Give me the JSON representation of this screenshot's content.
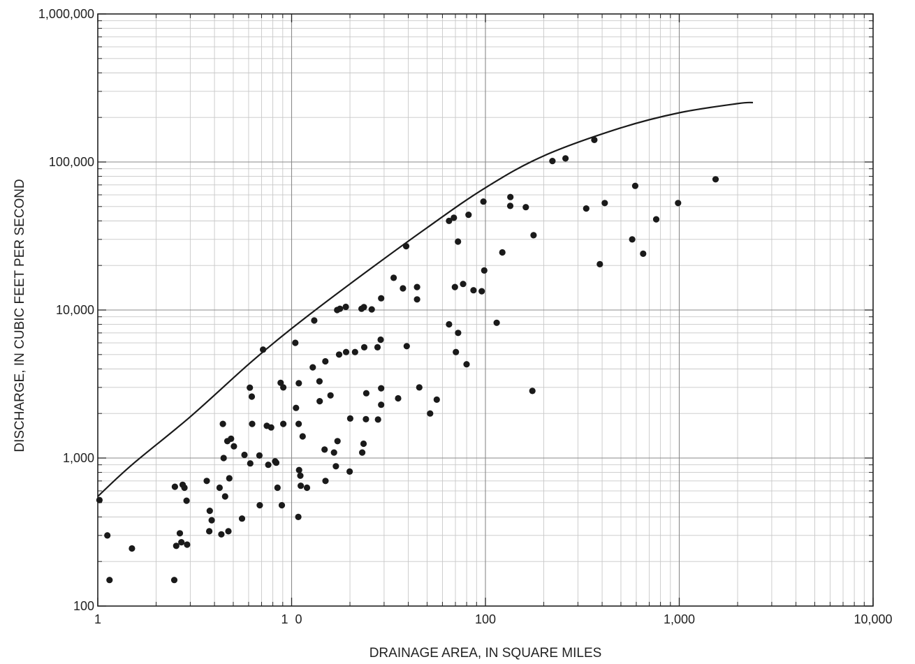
{
  "chart_data": {
    "type": "scatter",
    "x_scale": "log",
    "y_scale": "log",
    "xlim": [
      10,
      100000
    ],
    "ylim": [
      100,
      1000000
    ],
    "xlabel": "DRAINAGE AREA, IN SQUARE MILES",
    "ylabel": "DISCHARGE, IN CUBIC FEET PER SECOND",
    "grid": true,
    "x_ticks": [
      {
        "value": 10,
        "label": "1"
      },
      {
        "value": 100,
        "label": "1  0"
      },
      {
        "value": 1000,
        "label": "100"
      },
      {
        "value": 10000,
        "label": "1,000"
      },
      {
        "value": 100000,
        "label": "10,000"
      }
    ],
    "y_ticks": [
      {
        "value": 100,
        "label": "100"
      },
      {
        "value": 1000,
        "label": "1,000"
      },
      {
        "value": 10000,
        "label": "10,000"
      },
      {
        "value": 100000,
        "label": "100,000"
      },
      {
        "value": 1000000,
        "label": "1,000,000"
      }
    ],
    "curve": {
      "x": [
        10,
        15,
        30,
        60,
        100,
        200,
        500,
        1000,
        2000,
        5000,
        10000,
        20000,
        24000
      ],
      "y": [
        550,
        900,
        1900,
        4300,
        7500,
        15000,
        36000,
        67000,
        110000,
        170000,
        215000,
        248000,
        252000
      ]
    },
    "points": [
      [
        10.2,
        520
      ],
      [
        11.2,
        300
      ],
      [
        11.5,
        150
      ],
      [
        15,
        245
      ],
      [
        25,
        640
      ],
      [
        24.8,
        150
      ],
      [
        25.4,
        255
      ],
      [
        26.5,
        310
      ],
      [
        27,
        270
      ],
      [
        27.4,
        660
      ],
      [
        28,
        630
      ],
      [
        28.7,
        515
      ],
      [
        28.9,
        260
      ],
      [
        36.5,
        700
      ],
      [
        37.6,
        320
      ],
      [
        37.8,
        440
      ],
      [
        38.7,
        380
      ],
      [
        42.5,
        630
      ],
      [
        43.4,
        305
      ],
      [
        44.2,
        1700
      ],
      [
        44.6,
        1000
      ],
      [
        45.4,
        550
      ],
      [
        46.6,
        1300
      ],
      [
        47.2,
        320
      ],
      [
        47.7,
        730
      ],
      [
        48.7,
        1350
      ],
      [
        50.4,
        1200
      ],
      [
        55.5,
        390
      ],
      [
        57.1,
        1050
      ],
      [
        60.9,
        2990
      ],
      [
        61.2,
        920
      ],
      [
        62.3,
        2600
      ],
      [
        62.6,
        1700
      ],
      [
        68.2,
        1040
      ],
      [
        68.5,
        480
      ],
      [
        71.2,
        5400
      ],
      [
        74.5,
        1650
      ],
      [
        75.8,
        900
      ],
      [
        78.4,
        1610
      ],
      [
        82.2,
        950
      ],
      [
        83.3,
        930
      ],
      [
        84.6,
        630
      ],
      [
        87.8,
        3220
      ],
      [
        89,
        480
      ],
      [
        90.6,
        3000
      ],
      [
        90.6,
        1700
      ],
      [
        104.5,
        6000
      ],
      [
        105.4,
        2180
      ],
      [
        108.3,
        400
      ],
      [
        108.9,
        3200
      ],
      [
        108.7,
        1700
      ],
      [
        109.3,
        830
      ],
      [
        110.9,
        760
      ],
      [
        111.5,
        650
      ],
      [
        114,
        1400
      ],
      [
        120,
        630
      ],
      [
        128.6,
        4100
      ],
      [
        130.8,
        8500
      ],
      [
        139.2,
        3300
      ],
      [
        139.6,
        2420
      ],
      [
        148,
        1140
      ],
      [
        149.3,
        4500
      ],
      [
        149.6,
        700
      ],
      [
        158.8,
        2650
      ],
      [
        165.5,
        1090
      ],
      [
        169.2,
        880
      ],
      [
        171.8,
        10000
      ],
      [
        172.5,
        1300
      ],
      [
        175.8,
        5000
      ],
      [
        177.5,
        10200
      ],
      [
        190.4,
        10500
      ],
      [
        191,
        5200
      ],
      [
        200.6,
        1850
      ],
      [
        199.3,
        810
      ],
      [
        212.5,
        5200
      ],
      [
        229.4,
        10200
      ],
      [
        231.3,
        1090
      ],
      [
        235.1,
        1250
      ],
      [
        236.1,
        10450
      ],
      [
        237,
        5600
      ],
      [
        241.7,
        1830
      ],
      [
        242.7,
        2740
      ],
      [
        259.1,
        10100
      ],
      [
        277.5,
        5600
      ],
      [
        279,
        1820
      ],
      [
        288.1,
        6300
      ],
      [
        289.8,
        12000
      ],
      [
        289.8,
        2960
      ],
      [
        289.8,
        2290
      ],
      [
        336,
        16500
      ],
      [
        354.4,
        2530
      ],
      [
        375.3,
        14000
      ],
      [
        389.8,
        27000
      ],
      [
        392.5,
        5700
      ],
      [
        444,
        14300
      ],
      [
        444,
        11800
      ],
      [
        455.6,
        3000
      ],
      [
        518.3,
        2000
      ],
      [
        561,
        2480
      ],
      [
        649,
        40000
      ],
      [
        649,
        8000
      ],
      [
        687.5,
        42000
      ],
      [
        695.6,
        14300
      ],
      [
        703.8,
        5200
      ],
      [
        721.6,
        29000
      ],
      [
        723.2,
        7000
      ],
      [
        766.7,
        15000
      ],
      [
        799.6,
        4300
      ],
      [
        818.4,
        44000
      ],
      [
        867.9,
        13600
      ],
      [
        956.9,
        13400
      ],
      [
        976.1,
        54000
      ],
      [
        986.2,
        18500
      ],
      [
        1143,
        8200
      ],
      [
        1222,
        24500
      ],
      [
        1342,
        50500
      ],
      [
        1345,
        58000
      ],
      [
        1615,
        49500
      ],
      [
        1771,
        32000
      ],
      [
        1747,
        2840
      ],
      [
        2216,
        101500
      ],
      [
        2587,
        105700
      ],
      [
        3312,
        48500
      ],
      [
        3645,
        141000
      ],
      [
        3894,
        20400
      ],
      [
        4126,
        52800
      ],
      [
        5717,
        30000
      ],
      [
        5924,
        69000
      ],
      [
        6509,
        24000
      ],
      [
        7604,
        41000
      ],
      [
        9857,
        52800
      ],
      [
        15390,
        76400
      ]
    ]
  }
}
